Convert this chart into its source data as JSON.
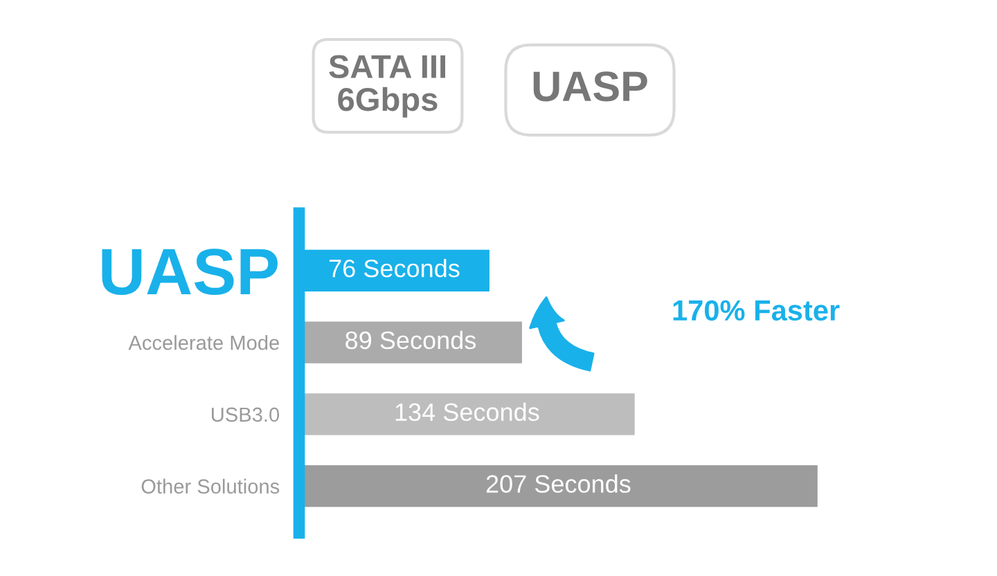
{
  "chart_data": {
    "type": "bar",
    "orientation": "horizontal",
    "categories": [
      "UASP",
      "Accelerate Mode",
      "USB3.0",
      "Other Solutions"
    ],
    "values": [
      76,
      89,
      134,
      207
    ],
    "value_labels": [
      "76 Seconds",
      "89 Seconds",
      "134 Seconds",
      "207 Seconds"
    ],
    "colors": [
      "#19b1ea",
      "#ababab",
      "#bdbdbd",
      "#9c9c9c"
    ],
    "grid": false,
    "legend": false,
    "tick_labels": "y",
    "annotations": [
      "SATA III\n6Gbps",
      "UASP",
      "170% Faster"
    ]
  }
}
